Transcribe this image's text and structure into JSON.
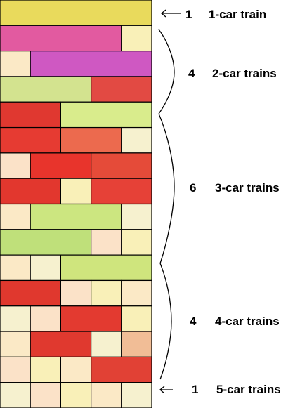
{
  "unit_colors": [
    "#f9f0b8",
    "#fbe9c6",
    "#f6f1cf",
    "#fbe2c8"
  ],
  "rows": [
    [
      {
        "len": 5,
        "color": "#e9da5c"
      }
    ],
    [
      {
        "len": 4,
        "color": "#e25aa0"
      },
      {
        "len": 1,
        "color": "unit"
      }
    ],
    [
      {
        "len": 1,
        "color": "unit"
      },
      {
        "len": 4,
        "color": "#cf58c2"
      }
    ],
    [
      {
        "len": 3,
        "color": "#d3e38f"
      },
      {
        "len": 2,
        "color": "#e24a43"
      }
    ],
    [
      {
        "len": 2,
        "color": "#e03830"
      },
      {
        "len": 3,
        "color": "#d9ec8c"
      }
    ],
    [
      {
        "len": 2,
        "color": "#e63b32"
      },
      {
        "len": 2,
        "color": "#ec6a4e"
      },
      {
        "len": 1,
        "color": "unit"
      }
    ],
    [
      {
        "len": 1,
        "color": "unit"
      },
      {
        "len": 2,
        "color": "#e8342c"
      },
      {
        "len": 2,
        "color": "#e54b39"
      }
    ],
    [
      {
        "len": 2,
        "color": "#e2372e"
      },
      {
        "len": 1,
        "color": "unit"
      },
      {
        "len": 2,
        "color": "#e64137"
      }
    ],
    [
      {
        "len": 1,
        "color": "unit"
      },
      {
        "len": 3,
        "color": "#cce680"
      },
      {
        "len": 1,
        "color": "unit"
      }
    ],
    [
      {
        "len": 3,
        "color": "#bfe07a"
      },
      {
        "len": 1,
        "color": "unit"
      },
      {
        "len": 1,
        "color": "unit"
      }
    ],
    [
      {
        "len": 1,
        "color": "unit"
      },
      {
        "len": 1,
        "color": "unit"
      },
      {
        "len": 3,
        "color": "#cfe57d"
      }
    ],
    [
      {
        "len": 2,
        "color": "#e0382e"
      },
      {
        "len": 1,
        "color": "unit"
      },
      {
        "len": 1,
        "color": "unit"
      },
      {
        "len": 1,
        "color": "unit"
      }
    ],
    [
      {
        "len": 1,
        "color": "unit"
      },
      {
        "len": 1,
        "color": "unit"
      },
      {
        "len": 2,
        "color": "#e33a30"
      },
      {
        "len": 1,
        "color": "unit"
      }
    ],
    [
      {
        "len": 1,
        "color": "unit"
      },
      {
        "len": 2,
        "color": "#e0392f"
      },
      {
        "len": 1,
        "color": "unit"
      },
      {
        "len": 1,
        "color": "#f1bd96"
      }
    ],
    [
      {
        "len": 1,
        "color": "unit"
      },
      {
        "len": 1,
        "color": "unit"
      },
      {
        "len": 1,
        "color": "unit"
      },
      {
        "len": 2,
        "color": "#e14135"
      }
    ],
    [
      {
        "len": 1,
        "color": "unit"
      },
      {
        "len": 1,
        "color": "unit"
      },
      {
        "len": 1,
        "color": "unit"
      },
      {
        "len": 1,
        "color": "unit"
      },
      {
        "len": 1,
        "color": "unit"
      }
    ]
  ],
  "labels": [
    {
      "count": "1",
      "text": "1-car train",
      "marker": "arrow"
    },
    {
      "count": "4",
      "text": "2-car trains",
      "marker": "brace"
    },
    {
      "count": "6",
      "text": "3-car trains",
      "marker": "brace"
    },
    {
      "count": "4",
      "text": "4-car trains",
      "marker": "brace"
    },
    {
      "count": "1",
      "text": "5-car trains",
      "marker": "arrow"
    }
  ]
}
